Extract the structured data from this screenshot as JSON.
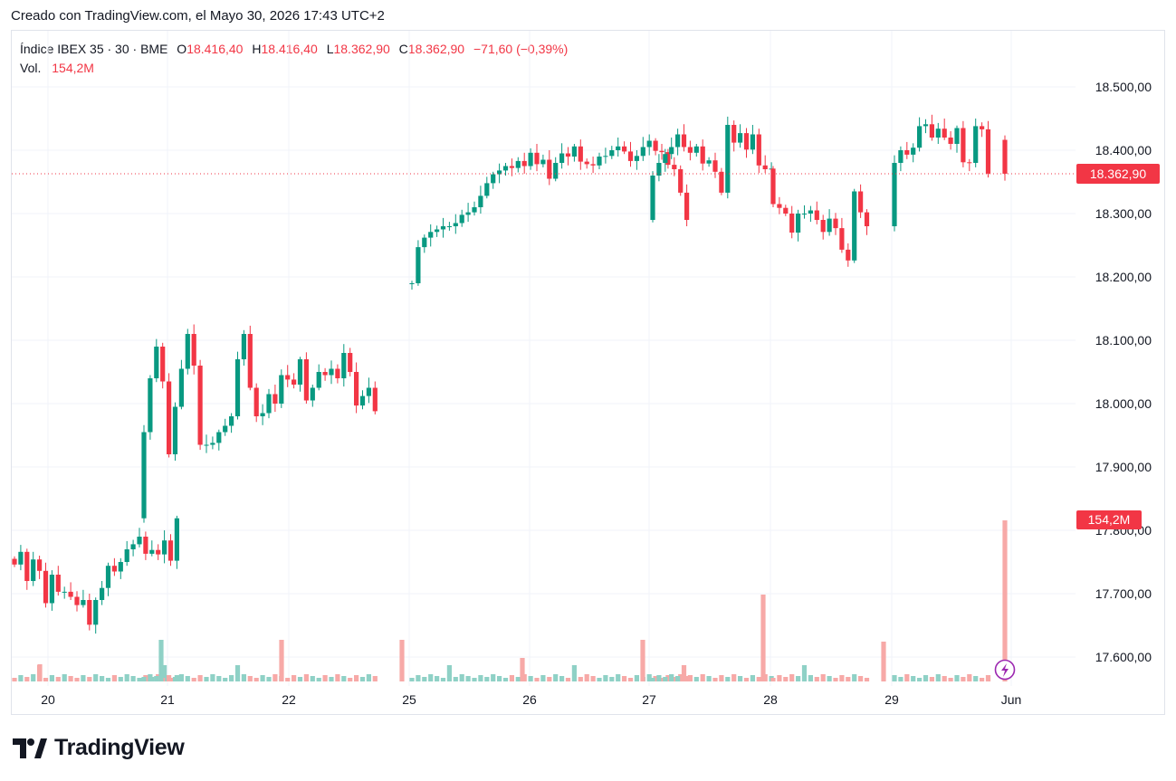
{
  "header": {
    "credit": "Creado con TradingView.com, el Mayo 30, 2026 17:43 UTC+2"
  },
  "legend": {
    "symbol": "Índice IBEX 35 · 30 · BME",
    "open_label": "O",
    "open": "18.416,40",
    "high_label": "H",
    "high": "18.416,40",
    "low_label": "L",
    "low": "18.362,90",
    "close_label": "C",
    "close": "18.362,90",
    "change": "−71,60 (−0,39%)",
    "vol_label": "Vol.",
    "vol": "154,2M"
  },
  "colors": {
    "up": "#089981",
    "down": "#f23645",
    "vol_up": "#8fd1c6",
    "vol_down": "#f7a9a7",
    "grid": "#f0f3fa",
    "axis_text": "#131722"
  },
  "chart_data": {
    "type": "candlestick",
    "y_ticks": [
      "18.500,00",
      "18.400,00",
      "18.300,00",
      "18.200,00",
      "18.100,00",
      "18.000,00",
      "17.900,00",
      "17.800,00",
      "17.700,00",
      "17.600,00"
    ],
    "y_tick_values": [
      18500,
      18400,
      18300,
      18200,
      18100,
      18000,
      17900,
      17800,
      17700,
      17600
    ],
    "ylim": [
      17555,
      18585
    ],
    "x_ticks": [
      "20",
      "21",
      "22",
      "25",
      "26",
      "27",
      "28",
      "29",
      "Jun"
    ],
    "last_price": 18362.9,
    "last_price_label": "18.362,90",
    "last_volume_label": "154,2M",
    "sessions": [
      [
        17746,
        17766,
        17720,
        17754,
        17736,
        17685,
        17730,
        17703,
        17703,
        17695,
        17682,
        17690,
        17651,
        17690,
        17709,
        17744,
        17735,
        17750,
        17770,
        17778,
        17790,
        17763,
        17769,
        17762,
        17784,
        17752,
        17819
      ],
      [
        17955,
        18040,
        18090,
        18035,
        17920,
        17995,
        18055,
        18110,
        18060,
        17935,
        17935,
        17938,
        17955,
        17965,
        17980,
        18070,
        18110,
        18025,
        17980,
        17985,
        18015,
        18000,
        18045,
        18038,
        18030,
        18070,
        18005,
        18025,
        18050,
        18045,
        18055,
        18040,
        18080,
        18050,
        17997,
        18012,
        18025,
        17988
      ],
      [
        18190,
        18247,
        18262,
        18271,
        18275,
        18280,
        18280,
        18285,
        18298,
        18302,
        18310,
        18328,
        18348,
        18362,
        18368,
        18375,
        18372,
        18383,
        18375,
        18396,
        18378,
        18385,
        18355,
        18380,
        18395,
        18390,
        18406,
        18382,
        18378,
        18376,
        18390,
        18391,
        18400,
        18406,
        18398,
        18383,
        18391,
        18405,
        18415,
        18399,
        18397,
        18377,
        18370,
        18333,
        18290
      ],
      [
        18360,
        18380,
        18394,
        18405,
        18425,
        18405,
        18396,
        18406,
        18379,
        18384,
        18366,
        18333,
        18440,
        18412,
        18427,
        18401,
        18425,
        18376,
        18370,
        18371
      ],
      [
        18315,
        18309,
        18300,
        18270,
        18300,
        18300,
        18305,
        18290,
        18271,
        18292,
        18277,
        18243,
        18226,
        18335,
        18302,
        18280
      ],
      [
        18380,
        18400,
        18393,
        18404,
        18438,
        18441,
        18420,
        18434,
        18420,
        18410,
        18435,
        18381,
        18380,
        18438,
        18433,
        18363
      ]
    ],
    "volume_up": [
      1,
      0,
      2,
      1,
      0,
      1,
      3,
      1,
      1,
      3,
      2,
      0,
      2,
      1,
      1,
      5,
      1,
      2,
      0,
      4,
      2,
      1,
      0,
      3,
      4
    ],
    "volume_spike_days": [
      "20",
      "21",
      "22",
      "25",
      "26",
      "27",
      "28",
      "29",
      "Jun"
    ]
  }
}
